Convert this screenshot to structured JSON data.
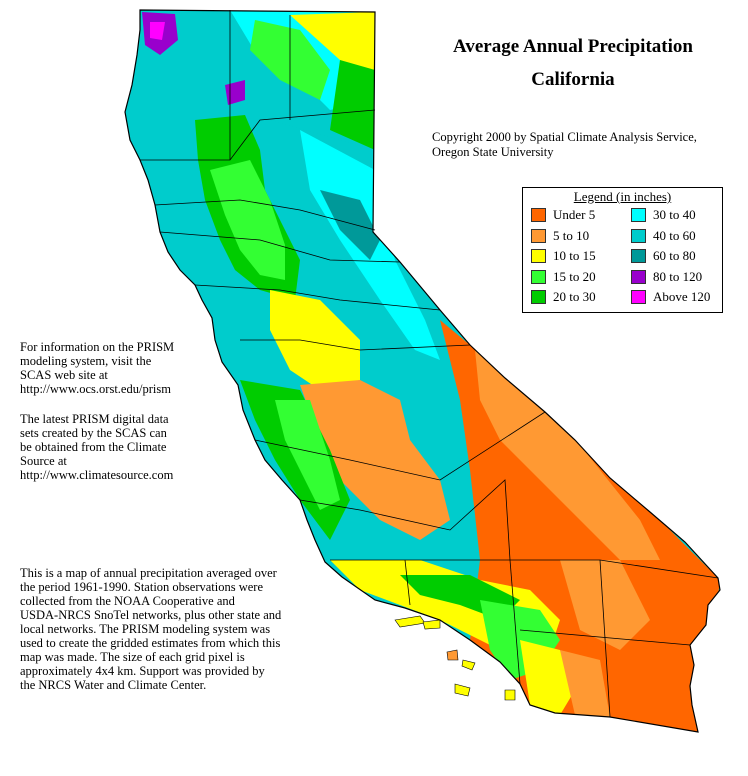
{
  "title": {
    "line1": "Average Annual Precipitation",
    "line2": "California"
  },
  "copyright": {
    "line1": "Copyright 2000 by Spatial Climate Analysis Service,",
    "line2": "Oregon State University"
  },
  "legend": {
    "title": "Legend (in inches)",
    "items": [
      {
        "label": "Under 5",
        "color": "#ff6600"
      },
      {
        "label": "5 to 10",
        "color": "#ff9933"
      },
      {
        "label": "10 to 15",
        "color": "#ffff00"
      },
      {
        "label": "15 to 20",
        "color": "#33ff33"
      },
      {
        "label": "20 to 30",
        "color": "#00cc00"
      },
      {
        "label": "30 to 40",
        "color": "#00ffff"
      },
      {
        "label": "40 to 60",
        "color": "#00cccc"
      },
      {
        "label": "60 to 80",
        "color": "#009999"
      },
      {
        "label": "80 to 120",
        "color": "#9900cc"
      },
      {
        "label": "Above 120",
        "color": "#ff00ff"
      }
    ]
  },
  "info_prism": {
    "lines": [
      "For information on the PRISM",
      "modeling system, visit the",
      "SCAS web site at",
      "http://www.ocs.orst.edu/prism"
    ]
  },
  "info_data": {
    "lines": [
      "The latest PRISM digital data",
      "sets created by the SCAS can",
      "be obtained from the Climate",
      "Source at",
      "http://www.climatesource.com"
    ]
  },
  "info_about": {
    "lines": [
      "This is a map of annual precipitation averaged over",
      "the period 1961-1990. Station observations were",
      "collected from the NOAA Cooperative and",
      "USDA-NRCS SnoTel networks, plus other state and",
      "local networks.  The PRISM modeling system was",
      "used to create the gridded estimates from which this",
      "map was made.  The size of each grid pixel is",
      "approximately 4x4 km.  Support was provided by",
      "the NRCS Water and Climate Center."
    ]
  }
}
